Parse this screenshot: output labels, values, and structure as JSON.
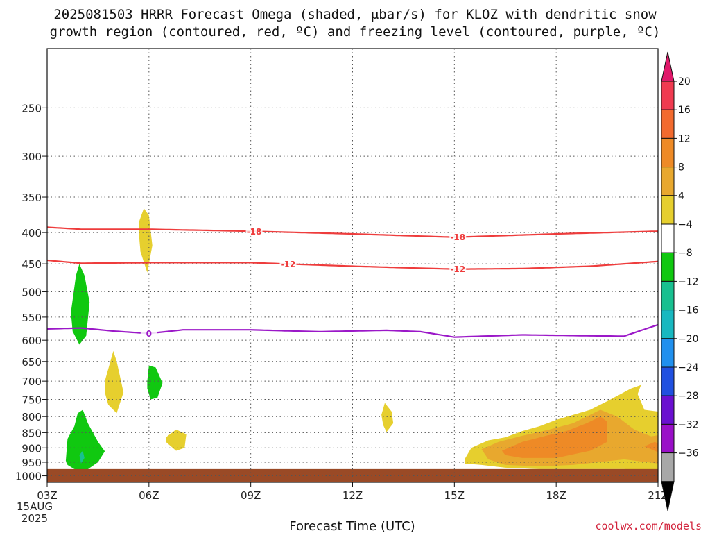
{
  "chart_data": {
    "type": "heatmap",
    "title_line1": "2025081503 HRRR Forecast Omega (shaded, μbar/s) for KLOZ with dendritic snow",
    "title_line2": "growth region (contoured, red, ºC) and freezing level (contoured, purple, ºC)",
    "xlabel": "Forecast Time (UTC)",
    "credit": "coolwx.com/models",
    "x_ticks": [
      "03Z",
      "06Z",
      "09Z",
      "12Z",
      "15Z",
      "18Z",
      "21Z"
    ],
    "x_tick_hours": [
      0,
      3,
      6,
      9,
      12,
      15,
      18
    ],
    "x_date_lines": [
      "15AUG",
      "2025"
    ],
    "x_range": [
      0,
      18
    ],
    "y_ticks": [
      250,
      300,
      350,
      400,
      450,
      500,
      550,
      600,
      650,
      700,
      750,
      800,
      850,
      900,
      950,
      1000
    ],
    "y_range": [
      200,
      1025
    ],
    "y_scale": "log",
    "y_inverted": true,
    "grid": true,
    "colorbar": {
      "labels": [
        "20",
        "16",
        "12",
        "8",
        "4",
        "−4",
        "−8",
        "−12",
        "−16",
        "−20",
        "−24",
        "−28",
        "−32",
        "−36"
      ],
      "colors": [
        "#f03a50",
        "#f26a2e",
        "#ee8a26",
        "#e8a82e",
        "#e6cf2e",
        "#ffffff",
        "#10c810",
        "#18c090",
        "#18b8c0",
        "#2090ee",
        "#2050e0",
        "#6a10d0",
        "#9a10c8",
        "#a8a8a8"
      ],
      "top_color": "#e0186a",
      "bottom_color": "#000000"
    },
    "contours": [
      {
        "label": "-18",
        "color": "#ee3c3c",
        "points": [
          [
            0,
            392
          ],
          [
            1,
            395
          ],
          [
            3,
            395
          ],
          [
            6,
            398
          ],
          [
            9,
            402
          ],
          [
            12,
            407
          ],
          [
            15,
            402
          ],
          [
            18,
            398
          ]
        ],
        "label_hours": [
          6.1,
          12.1
        ]
      },
      {
        "label": "-12",
        "color": "#ee3c3c",
        "points": [
          [
            0,
            444
          ],
          [
            1,
            449
          ],
          [
            3,
            448
          ],
          [
            6,
            448
          ],
          [
            9,
            454
          ],
          [
            12,
            459
          ],
          [
            14,
            458
          ],
          [
            16,
            454
          ],
          [
            18,
            446
          ]
        ],
        "label_hours": [
          7.1,
          12.1
        ]
      },
      {
        "label": "0",
        "color": "#9b18c8",
        "points": [
          [
            0,
            575
          ],
          [
            1,
            573
          ],
          [
            2,
            580
          ],
          [
            3,
            585
          ],
          [
            4,
            577
          ],
          [
            6,
            577
          ],
          [
            8,
            581
          ],
          [
            10,
            578
          ],
          [
            11,
            581
          ],
          [
            12,
            593
          ],
          [
            14,
            588
          ],
          [
            16,
            590
          ],
          [
            17,
            591
          ],
          [
            18,
            566
          ]
        ],
        "label_hours": [
          3
        ]
      }
    ],
    "omega_areas": [
      {
        "level": "-8",
        "color": "#10c810",
        "points": [
          [
            0.7,
            540
          ],
          [
            0.85,
            470
          ],
          [
            0.95,
            450
          ],
          [
            1.1,
            470
          ],
          [
            1.25,
            520
          ],
          [
            1.15,
            590
          ],
          [
            0.95,
            610
          ],
          [
            0.75,
            580
          ]
        ]
      },
      {
        "level": "-8",
        "color": "#10c810",
        "points": [
          [
            2.95,
            700
          ],
          [
            3.0,
            660
          ],
          [
            3.2,
            665
          ],
          [
            3.4,
            705
          ],
          [
            3.25,
            745
          ],
          [
            3.05,
            750
          ],
          [
            2.95,
            720
          ]
        ]
      },
      {
        "level": "-8",
        "color": "#10c810",
        "points": [
          [
            0.55,
            945
          ],
          [
            0.6,
            870
          ],
          [
            0.8,
            830
          ],
          [
            0.9,
            790
          ],
          [
            1.05,
            780
          ],
          [
            1.2,
            820
          ],
          [
            1.5,
            880
          ],
          [
            1.7,
            912
          ],
          [
            1.5,
            950
          ],
          [
            1.15,
            980
          ],
          [
            0.8,
            975
          ],
          [
            0.6,
            960
          ]
        ]
      },
      {
        "level": "-12",
        "color": "#18c090",
        "points": [
          [
            0.95,
            925
          ],
          [
            1.05,
            910
          ],
          [
            1.1,
            935
          ],
          [
            1.0,
            955
          ]
        ]
      },
      {
        "level": "4",
        "color": "#e6cf2e",
        "points": [
          [
            2.7,
            385
          ],
          [
            2.85,
            365
          ],
          [
            3.0,
            375
          ],
          [
            3.1,
            420
          ],
          [
            2.95,
            465
          ],
          [
            2.75,
            430
          ],
          [
            2.7,
            400
          ]
        ]
      },
      {
        "level": "4",
        "color": "#e6cf2e",
        "points": [
          [
            1.7,
            700
          ],
          [
            1.95,
            625
          ],
          [
            2.05,
            650
          ],
          [
            2.25,
            730
          ],
          [
            2.05,
            790
          ],
          [
            1.8,
            765
          ],
          [
            1.7,
            730
          ]
        ]
      },
      {
        "level": "4",
        "color": "#e6cf2e",
        "points": [
          [
            3.5,
            865
          ],
          [
            3.8,
            840
          ],
          [
            4.1,
            855
          ],
          [
            4.05,
            900
          ],
          [
            3.8,
            910
          ],
          [
            3.5,
            880
          ]
        ]
      },
      {
        "level": "4",
        "color": "#e6cf2e",
        "points": [
          [
            9.85,
            795
          ],
          [
            9.95,
            760
          ],
          [
            10.15,
            785
          ],
          [
            10.2,
            820
          ],
          [
            10.0,
            848
          ],
          [
            9.9,
            825
          ]
        ]
      },
      {
        "level": "4",
        "color": "#e6cf2e",
        "points": [
          [
            12.3,
            940
          ],
          [
            12.5,
            900
          ],
          [
            13.0,
            875
          ],
          [
            13.5,
            865
          ],
          [
            14.0,
            845
          ],
          [
            14.5,
            830
          ],
          [
            15.0,
            810
          ],
          [
            15.5,
            795
          ],
          [
            16.0,
            780
          ],
          [
            16.5,
            755
          ],
          [
            17.2,
            720
          ],
          [
            17.5,
            710
          ],
          [
            17.4,
            735
          ],
          [
            17.6,
            780
          ],
          [
            18,
            785
          ],
          [
            18,
            985
          ],
          [
            17.0,
            975
          ],
          [
            15.5,
            975
          ],
          [
            14.5,
            975
          ],
          [
            13.5,
            970
          ],
          [
            12.8,
            960
          ],
          [
            12.3,
            955
          ]
        ]
      },
      {
        "level": "8",
        "color": "#e8a82e",
        "points": [
          [
            12.8,
            905
          ],
          [
            13.3,
            880
          ],
          [
            14.0,
            860
          ],
          [
            14.8,
            840
          ],
          [
            15.5,
            820
          ],
          [
            16.0,
            795
          ],
          [
            16.3,
            780
          ],
          [
            16.8,
            800
          ],
          [
            17.3,
            840
          ],
          [
            17.8,
            862
          ],
          [
            18,
            858
          ],
          [
            18,
            955
          ],
          [
            17.0,
            940
          ],
          [
            15.5,
            960
          ],
          [
            14.5,
            965
          ],
          [
            13.5,
            960
          ],
          [
            13.0,
            940
          ]
        ]
      },
      {
        "level": "12",
        "color": "#ee8a26",
        "points": [
          [
            13.4,
            910
          ],
          [
            14.0,
            880
          ],
          [
            14.7,
            860
          ],
          [
            15.3,
            845
          ],
          [
            15.9,
            820
          ],
          [
            16.3,
            800
          ],
          [
            16.5,
            815
          ],
          [
            16.5,
            880
          ],
          [
            16.0,
            910
          ],
          [
            15.0,
            935
          ],
          [
            14.0,
            935
          ],
          [
            13.5,
            925
          ]
        ]
      },
      {
        "level": "12",
        "color": "#ee8a26",
        "points": [
          [
            17.6,
            895
          ],
          [
            17.9,
            880
          ],
          [
            18,
            885
          ],
          [
            18,
            915
          ],
          [
            17.8,
            905
          ]
        ]
      }
    ],
    "surface_fill": {
      "color": "#9a4a26",
      "from": 975,
      "to": 1025
    }
  }
}
